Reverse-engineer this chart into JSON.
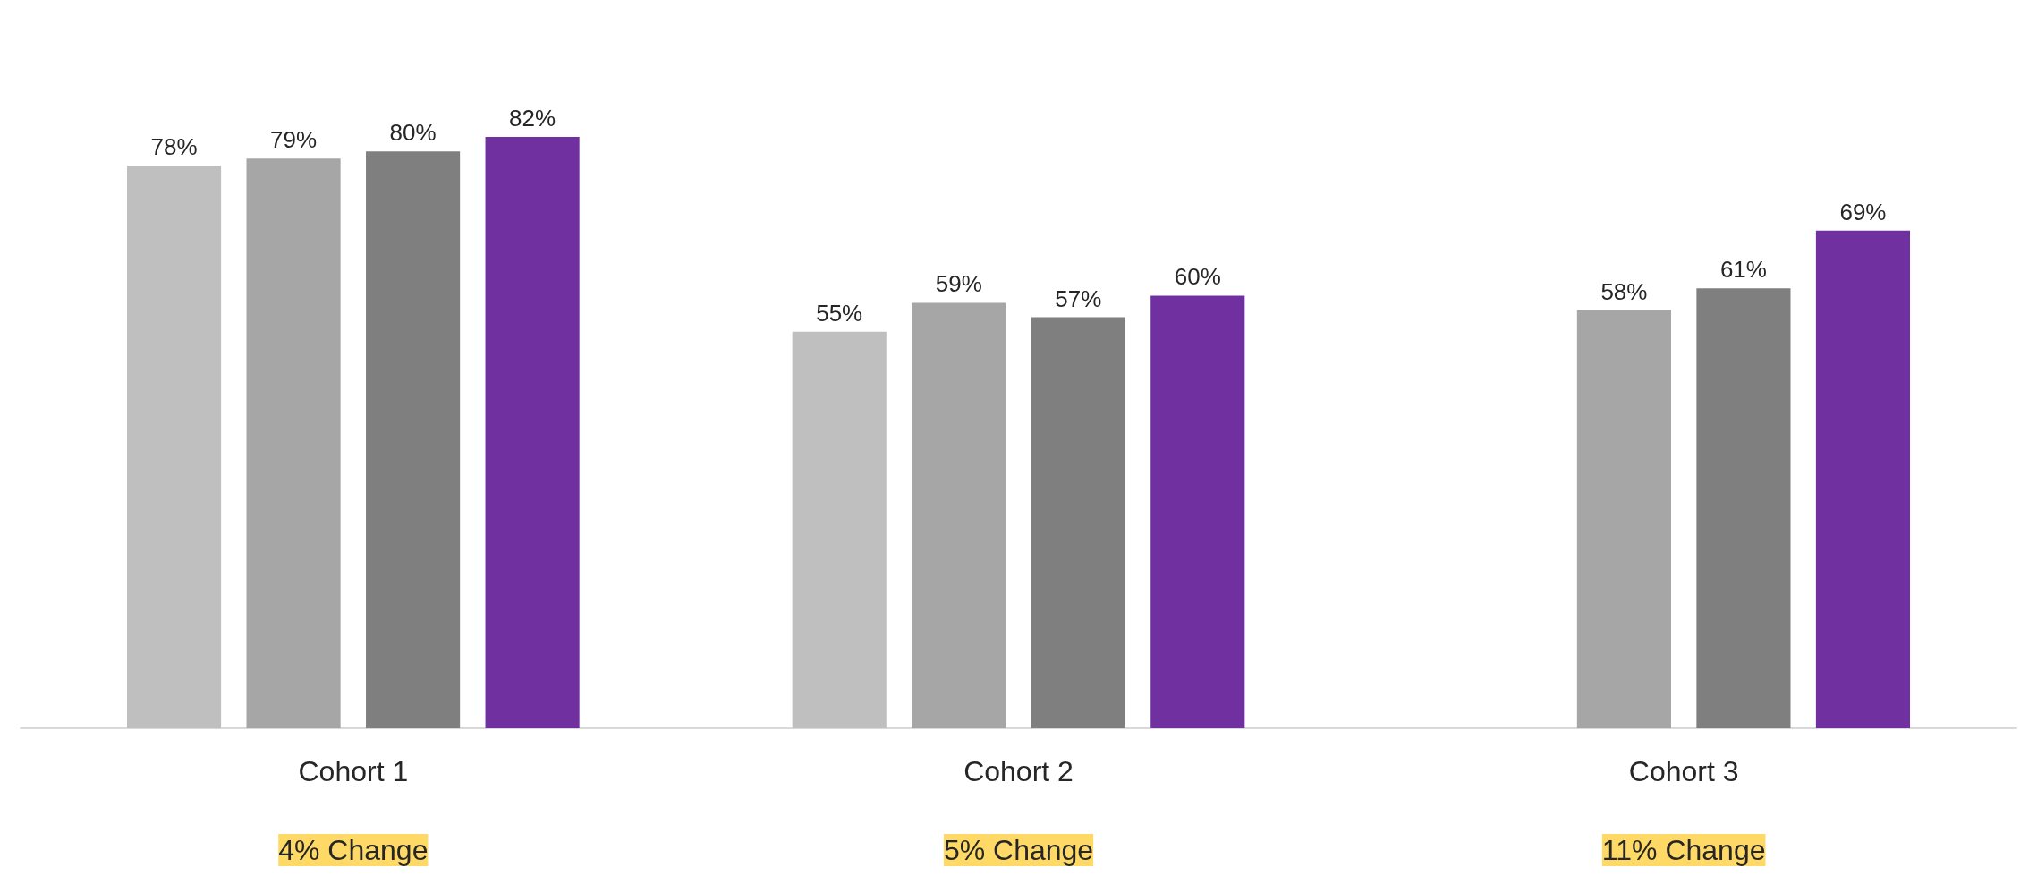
{
  "chart_data": {
    "type": "bar",
    "categories": [
      "Cohort 1",
      "Cohort 2",
      "Cohort 3"
    ],
    "series": [
      {
        "color": "#bfbfbf",
        "values": [
          78,
          55,
          null
        ],
        "value_labels": [
          "78%",
          "55%",
          null
        ]
      },
      {
        "color": "#a6a6a6",
        "values": [
          79,
          59,
          58
        ],
        "value_labels": [
          "79%",
          "59%",
          "58%"
        ]
      },
      {
        "color": "#7f7f7f",
        "values": [
          80,
          57,
          61
        ],
        "value_labels": [
          "80%",
          "57%",
          "61%"
        ]
      },
      {
        "color": "#7030a0",
        "values": [
          82,
          60,
          69
        ],
        "value_labels": [
          "82%",
          "60%",
          "69%"
        ]
      }
    ],
    "annotations": [
      "4% Change",
      "5% Change",
      "11% Change"
    ],
    "grid": false,
    "tick_labels": "x"
  }
}
